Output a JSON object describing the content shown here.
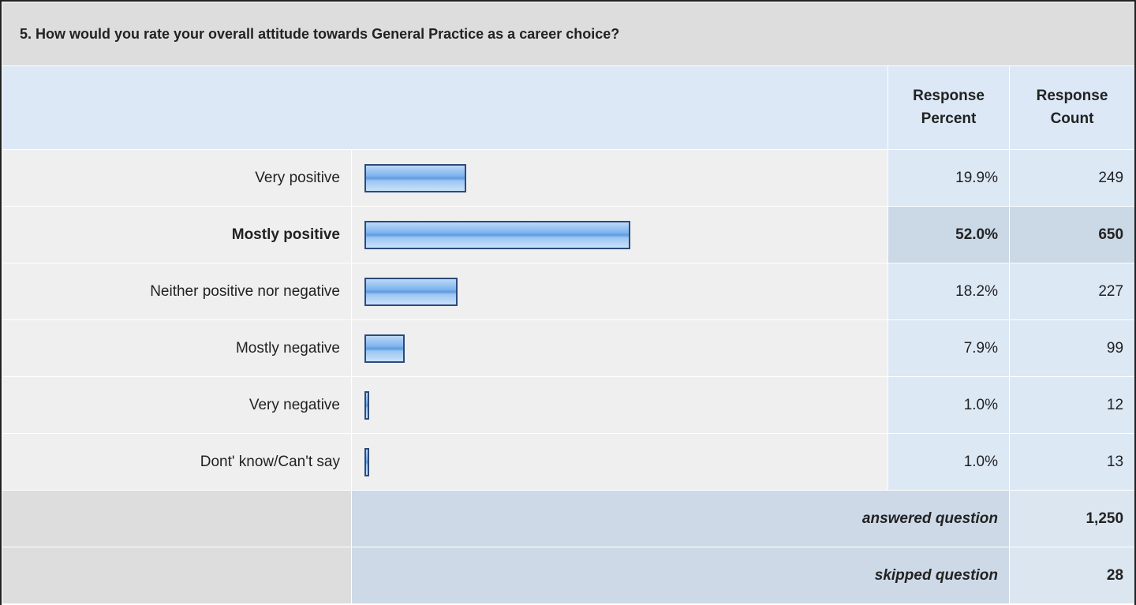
{
  "question": "5. How would you rate your overall attitude towards General Practice as a career choice?",
  "headers": [
    "Response Percent",
    "Response Count"
  ],
  "highlight_row": 1,
  "rows": [
    {
      "label": "Very positive",
      "percent": 19.9,
      "percent_label": "19.9%",
      "count": 249
    },
    {
      "label": "Mostly positive",
      "percent": 52.0,
      "percent_label": "52.0%",
      "count": 650
    },
    {
      "label": "Neither positive nor negative",
      "percent": 18.2,
      "percent_label": "18.2%",
      "count": 227
    },
    {
      "label": "Mostly negative",
      "percent": 7.9,
      "percent_label": "7.9%",
      "count": 99
    },
    {
      "label": "Very negative",
      "percent": 1.0,
      "percent_label": "1.0%",
      "count": 12
    },
    {
      "label": "Dont' know/Can't say",
      "percent": 1.0,
      "percent_label": "1.0%",
      "count": 13
    }
  ],
  "summary": [
    {
      "label": "answered question",
      "count": "1,250"
    },
    {
      "label": "skipped question",
      "count": "28"
    }
  ]
}
